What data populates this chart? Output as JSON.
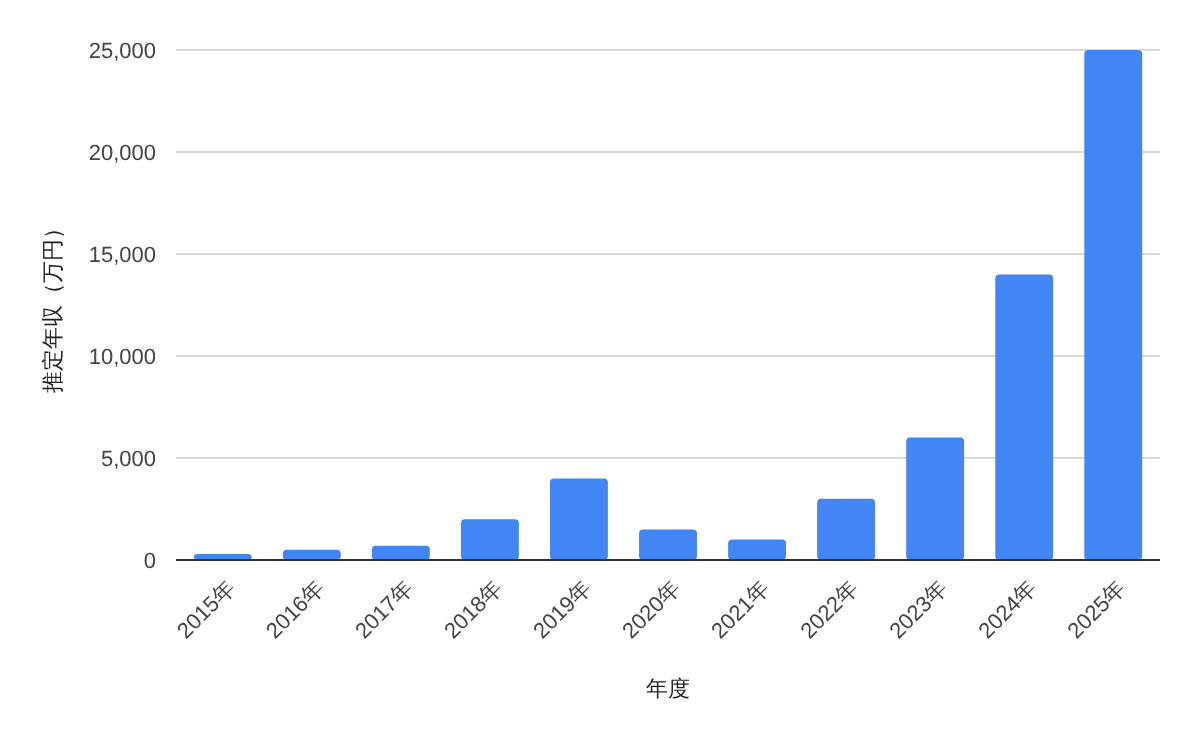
{
  "chart_data": {
    "type": "bar",
    "xlabel": "年度",
    "ylabel": "推定年収（万円）",
    "categories": [
      "2015年",
      "2016年",
      "2017年",
      "2018年",
      "2019年",
      "2020年",
      "2021年",
      "2022年",
      "2023年",
      "2024年",
      "2025年"
    ],
    "values": [
      300,
      500,
      700,
      2000,
      4000,
      1500,
      1000,
      3000,
      6000,
      14000,
      25000
    ],
    "color": "#4285f4",
    "ylim": [
      0,
      25000
    ],
    "yticks": [
      {
        "value": 0,
        "label": "0"
      },
      {
        "value": 5000,
        "label": "5,000"
      },
      {
        "value": 10000,
        "label": "10,000"
      },
      {
        "value": 15000,
        "label": "15,000"
      },
      {
        "value": 20000,
        "label": "20,000"
      },
      {
        "value": 25000,
        "label": "25,000"
      }
    ],
    "grid": true
  }
}
